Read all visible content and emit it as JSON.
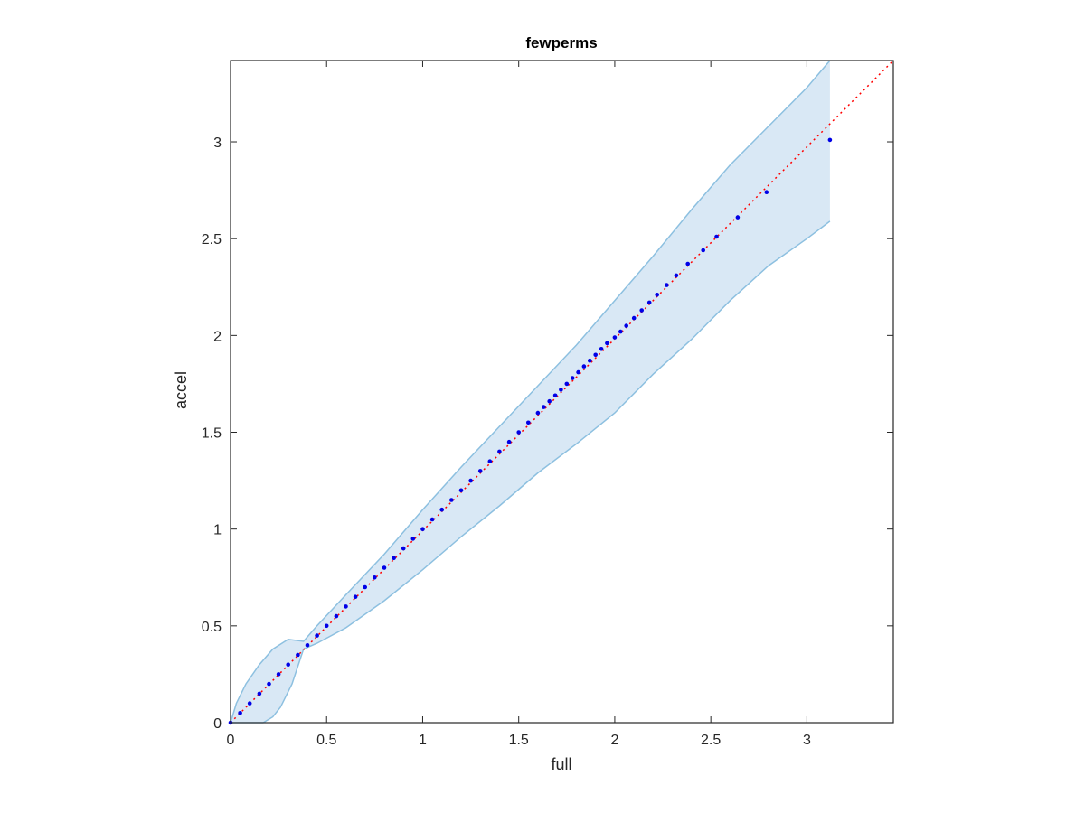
{
  "chart_data": {
    "type": "scatter",
    "title": "fewperms",
    "xlabel": "full",
    "ylabel": "accel",
    "xlim": [
      0,
      3.45
    ],
    "ylim": [
      0,
      3.42
    ],
    "xticks": [
      0,
      0.5,
      1,
      1.5,
      2,
      2.5,
      3
    ],
    "xtick_labels": [
      "0",
      "0.5",
      "1",
      "1.5",
      "2",
      "2.5",
      "3"
    ],
    "yticks": [
      0,
      0.5,
      1,
      1.5,
      2,
      2.5,
      3
    ],
    "ytick_labels": [
      "0",
      "0.5",
      "1",
      "1.5",
      "2",
      "2.5",
      "3"
    ],
    "grid": false,
    "colors": {
      "band_fill": "#d9e8f5",
      "band_edge": "#8dc0e0",
      "points": "#0000e6",
      "identity": "#ff0000",
      "axes": "#262626"
    },
    "band": {
      "upper": [
        [
          0.0,
          0.0
        ],
        [
          0.03,
          0.1
        ],
        [
          0.08,
          0.2
        ],
        [
          0.15,
          0.3
        ],
        [
          0.22,
          0.38
        ],
        [
          0.3,
          0.43
        ],
        [
          0.38,
          0.42
        ],
        [
          0.45,
          0.5
        ],
        [
          0.6,
          0.66
        ],
        [
          0.8,
          0.87
        ],
        [
          1.0,
          1.1
        ],
        [
          1.2,
          1.32
        ],
        [
          1.4,
          1.53
        ],
        [
          1.6,
          1.74
        ],
        [
          1.8,
          1.95
        ],
        [
          2.0,
          2.18
        ],
        [
          2.2,
          2.41
        ],
        [
          2.4,
          2.65
        ],
        [
          2.6,
          2.88
        ],
        [
          2.8,
          3.08
        ],
        [
          3.0,
          3.28
        ],
        [
          3.12,
          3.42
        ]
      ],
      "lower": [
        [
          3.12,
          2.59
        ],
        [
          3.0,
          2.5
        ],
        [
          2.8,
          2.36
        ],
        [
          2.6,
          2.18
        ],
        [
          2.4,
          1.98
        ],
        [
          2.2,
          1.8
        ],
        [
          2.0,
          1.6
        ],
        [
          1.8,
          1.44
        ],
        [
          1.6,
          1.29
        ],
        [
          1.4,
          1.12
        ],
        [
          1.2,
          0.96
        ],
        [
          1.0,
          0.79
        ],
        [
          0.8,
          0.63
        ],
        [
          0.6,
          0.49
        ],
        [
          0.45,
          0.41
        ],
        [
          0.38,
          0.38
        ],
        [
          0.32,
          0.2
        ],
        [
          0.26,
          0.08
        ],
        [
          0.22,
          0.03
        ],
        [
          0.17,
          0.0
        ],
        [
          0.0,
          0.0
        ]
      ]
    },
    "series": [
      {
        "x": [
          0.0,
          0.05,
          0.1,
          0.15,
          0.2,
          0.25,
          0.3,
          0.35,
          0.4,
          0.45,
          0.5,
          0.55,
          0.6,
          0.65,
          0.7,
          0.75,
          0.8,
          0.85,
          0.9,
          0.95,
          1.0,
          1.05,
          1.1,
          1.15,
          1.2,
          1.25,
          1.3,
          1.35,
          1.4,
          1.45,
          1.5,
          1.55,
          1.6,
          1.63,
          1.66,
          1.69,
          1.72,
          1.75,
          1.78,
          1.81,
          1.84,
          1.87,
          1.9,
          1.93,
          1.96,
          2.0,
          2.03,
          2.06,
          2.1,
          2.14,
          2.18,
          2.22,
          2.27,
          2.32,
          2.38,
          2.46,
          2.53,
          2.64,
          2.79,
          3.12
        ],
        "y": [
          0.0,
          0.05,
          0.1,
          0.15,
          0.2,
          0.25,
          0.3,
          0.35,
          0.4,
          0.45,
          0.5,
          0.55,
          0.6,
          0.65,
          0.7,
          0.75,
          0.8,
          0.85,
          0.9,
          0.95,
          1.0,
          1.05,
          1.1,
          1.15,
          1.2,
          1.25,
          1.3,
          1.35,
          1.4,
          1.45,
          1.5,
          1.55,
          1.6,
          1.63,
          1.66,
          1.69,
          1.72,
          1.75,
          1.78,
          1.81,
          1.84,
          1.87,
          1.9,
          1.93,
          1.96,
          1.99,
          2.02,
          2.05,
          2.09,
          2.13,
          2.17,
          2.21,
          2.26,
          2.31,
          2.37,
          2.44,
          2.51,
          2.61,
          2.74,
          3.01
        ]
      }
    ],
    "identity_line": [
      [
        0,
        0
      ],
      [
        3.45,
        3.42
      ]
    ]
  }
}
